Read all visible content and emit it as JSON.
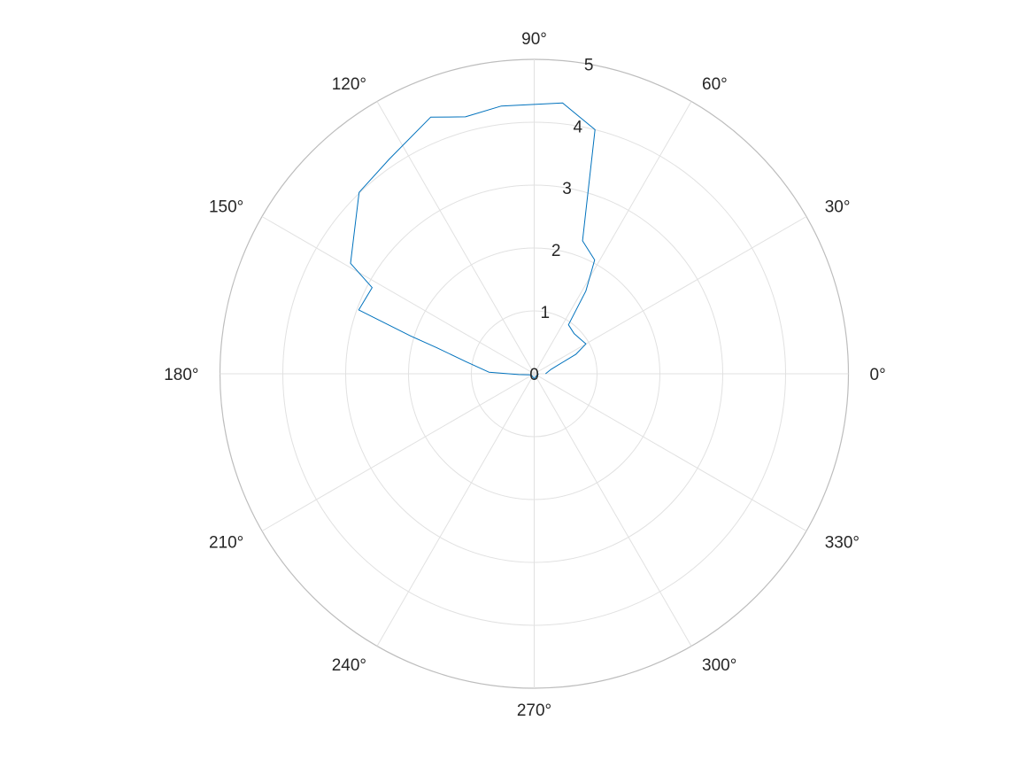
{
  "chart_data": {
    "type": "line",
    "subtype": "polar",
    "title": "",
    "theta_unit": "degrees",
    "theta_ticks": [
      0,
      30,
      60,
      90,
      120,
      150,
      180,
      210,
      240,
      270,
      300,
      330
    ],
    "theta_tick_labels": [
      "0°",
      "30°",
      "60°",
      "90°",
      "120°",
      "150°",
      "180°",
      "210°",
      "240°",
      "270°",
      "300°",
      "330°"
    ],
    "r_ticks": [
      0,
      1,
      2,
      3,
      4,
      5
    ],
    "r_tick_labels": [
      "0",
      "1",
      "2",
      "3",
      "4",
      "5"
    ],
    "rlim": [
      0,
      5
    ],
    "grid": true,
    "series": [
      {
        "color": "#0072bd",
        "points": [
          {
            "theta": 0,
            "r": 0.18
          },
          {
            "theta": 15,
            "r": 0.28
          },
          {
            "theta": 20,
            "r": 0.4
          },
          {
            "theta": 25,
            "r": 0.73
          },
          {
            "theta": 30,
            "r": 0.95
          },
          {
            "theta": 45,
            "r": 0.9
          },
          {
            "theta": 55,
            "r": 0.95
          },
          {
            "theta": 58,
            "r": 1.55
          },
          {
            "theta": 62,
            "r": 2.05
          },
          {
            "theta": 70,
            "r": 2.25
          },
          {
            "theta": 76,
            "r": 4.0
          },
          {
            "theta": 84,
            "r": 4.33
          },
          {
            "theta": 97,
            "r": 4.29
          },
          {
            "theta": 105,
            "r": 4.23
          },
          {
            "theta": 112,
            "r": 4.4
          },
          {
            "theta": 124,
            "r": 4.12
          },
          {
            "theta": 134,
            "r": 4.01
          },
          {
            "theta": 149,
            "r": 3.41
          },
          {
            "theta": 152,
            "r": 2.92
          },
          {
            "theta": 160,
            "r": 2.97
          },
          {
            "theta": 163,
            "r": 2.06
          },
          {
            "theta": 165,
            "r": 1.61
          },
          {
            "theta": 170,
            "r": 1.1
          },
          {
            "theta": 178,
            "r": 0.72
          },
          {
            "theta": 183,
            "r": 0.25
          },
          {
            "theta": 200,
            "r": 0.05
          },
          {
            "theta": 210,
            "r": 0.05
          },
          {
            "theta": 240,
            "r": 0.05
          },
          {
            "theta": 270,
            "r": 0.08
          },
          {
            "theta": 300,
            "r": 0.05
          },
          {
            "theta": 0,
            "r": 0.07
          }
        ]
      }
    ]
  }
}
